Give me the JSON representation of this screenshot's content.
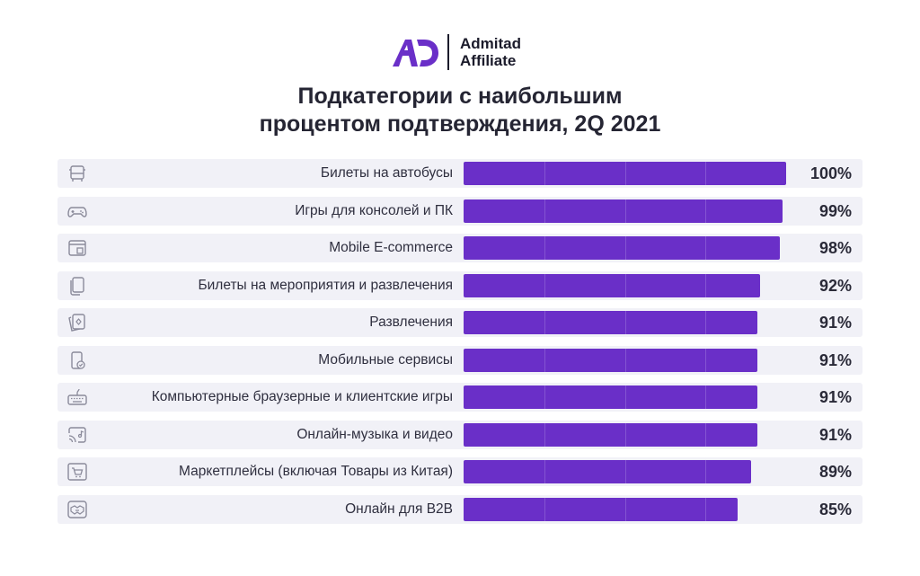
{
  "brand": {
    "name_line1": "Admitad",
    "name_line2": "Affiliate",
    "color": "#6a2fc8"
  },
  "title_line1": "Подкатегории с наибольшим",
  "title_line2": "процентом подтверждения, 2Q 2021",
  "chart_data": {
    "type": "bar",
    "orientation": "horizontal",
    "title": "Подкатегории с наибольшим процентом подтверждения, 2Q 2021",
    "categories": [
      "Билеты на автобусы",
      "Игры для консолей и ПК",
      "Mobile E-commerce",
      "Билеты на мероприятия и развлечения",
      "Развлечения",
      "Мобильные сервисы",
      "Компьютерные браузерные и клиентские игры",
      "Онлайн-музыка и видео",
      "Маркетплейсы (включая Товары из Китая)",
      "Онлайн для B2B"
    ],
    "values": [
      100,
      99,
      98,
      92,
      91,
      91,
      91,
      91,
      89,
      85
    ],
    "value_labels": [
      "100%",
      "99%",
      "98%",
      "92%",
      "91%",
      "91%",
      "91%",
      "91%",
      "89%",
      "85%"
    ],
    "icons": [
      "bus-icon",
      "gamepad-icon",
      "store-icon",
      "tickets-icon",
      "playing-cards-icon",
      "mobile-check-icon",
      "keyboard-icon",
      "music-video-icon",
      "cart-icon",
      "handshake-icon"
    ],
    "xlim": [
      0,
      100
    ],
    "bar_color": "#6a2fc8",
    "grid": true
  }
}
